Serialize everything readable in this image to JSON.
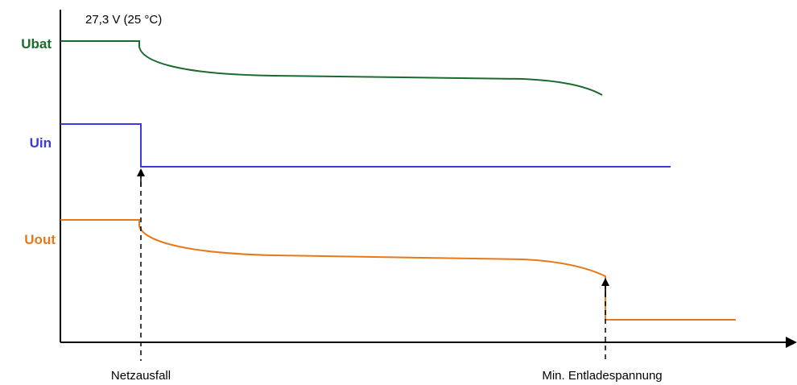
{
  "diagram": {
    "top_annotation": "27,3 V (25 °C)",
    "traces": {
      "ubat": {
        "label": "Ubat",
        "color": "#1a6b2d"
      },
      "uin": {
        "label": "Uin",
        "color": "#3b3bdb"
      },
      "uout": {
        "label": "Uout",
        "color": "#e8791a"
      }
    },
    "events": {
      "mains_failure": "Netzausfall",
      "min_discharge_voltage": "Min. Entladespannung"
    },
    "axis_color": "#000000"
  }
}
